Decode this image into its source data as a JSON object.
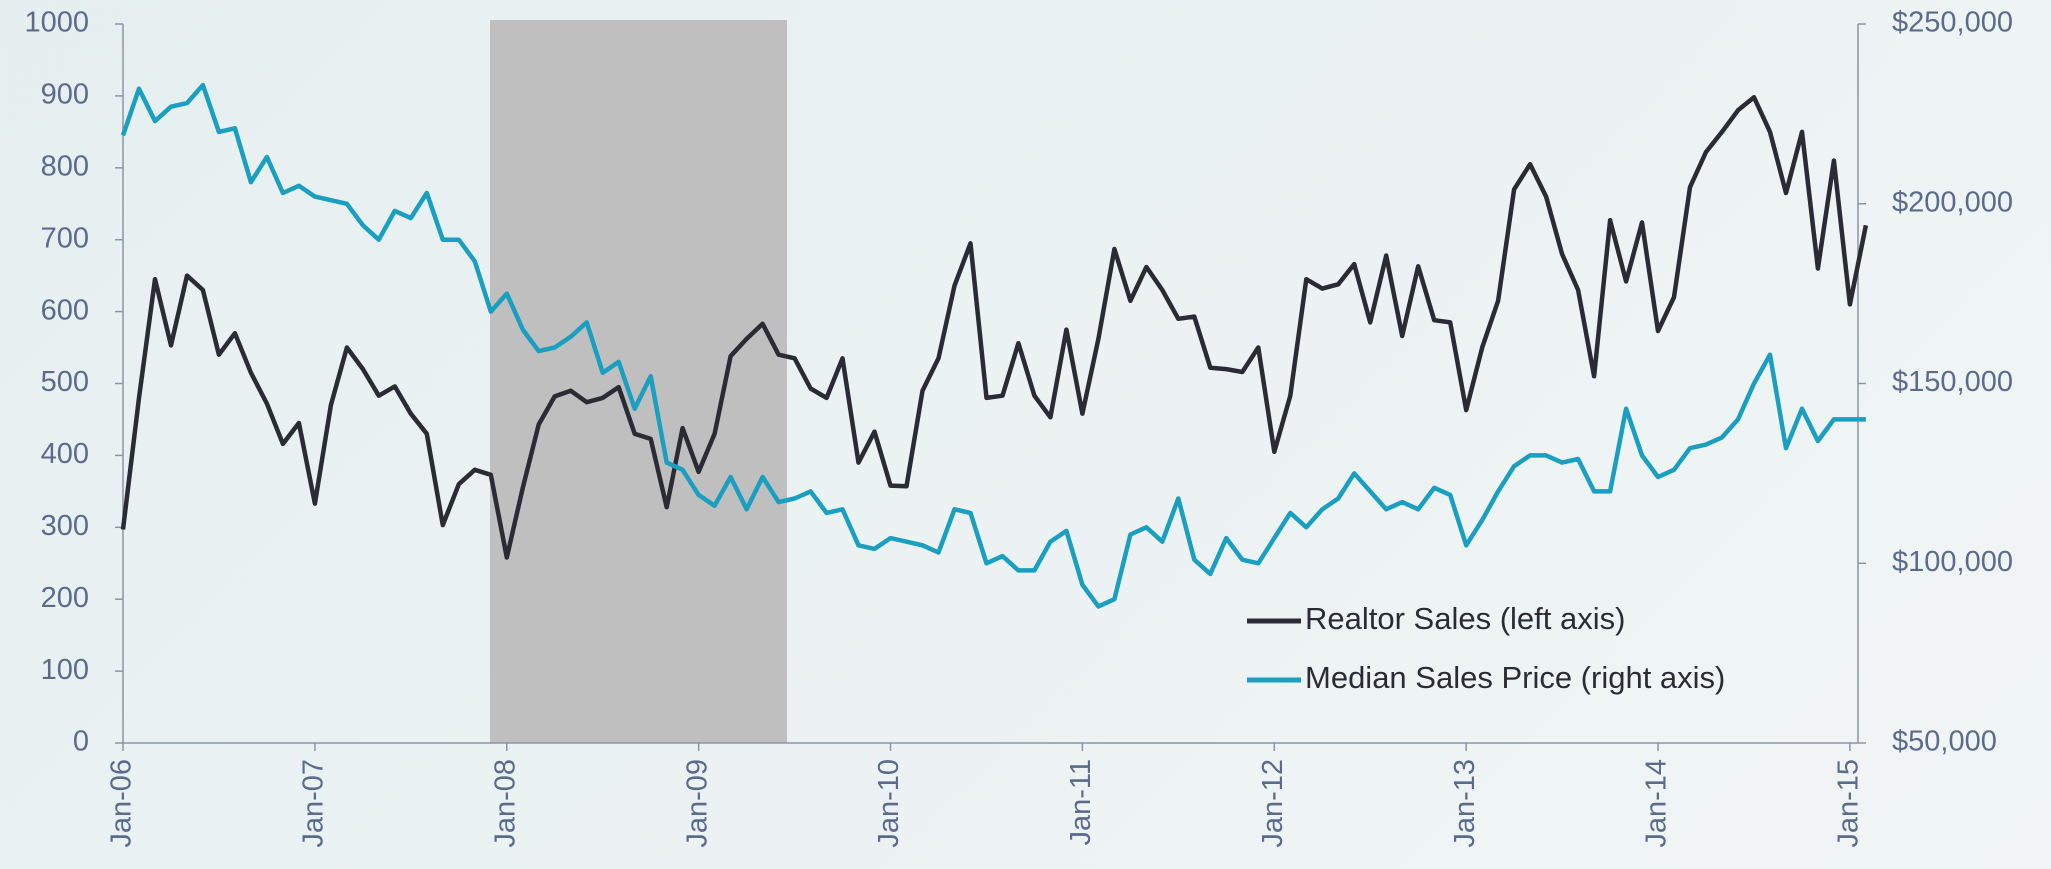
{
  "chart_data": {
    "type": "line",
    "categories": [
      "Jan-06",
      null,
      null,
      null,
      null,
      null,
      null,
      null,
      null,
      null,
      null,
      null,
      "Jan-07",
      null,
      null,
      null,
      null,
      null,
      null,
      null,
      null,
      null,
      null,
      null,
      "Jan-08",
      null,
      null,
      null,
      null,
      null,
      null,
      null,
      null,
      null,
      null,
      null,
      "Jan-09",
      null,
      null,
      null,
      null,
      null,
      null,
      null,
      null,
      null,
      null,
      null,
      "Jan-10",
      null,
      null,
      null,
      null,
      null,
      null,
      null,
      null,
      null,
      null,
      null,
      "Jan-11",
      null,
      null,
      null,
      null,
      null,
      null,
      null,
      null,
      null,
      null,
      null,
      "Jan-12",
      null,
      null,
      null,
      null,
      null,
      null,
      null,
      null,
      null,
      null,
      null,
      "Jan-13",
      null,
      null,
      null,
      null,
      null,
      null,
      null,
      null,
      null,
      null,
      null,
      "Jan-14",
      null,
      null,
      null,
      null,
      null,
      null,
      null,
      null,
      null,
      null,
      null,
      "Jan-15",
      null
    ],
    "series": [
      {
        "name": "Realtor Sales (left axis)",
        "color": "#2b2b36",
        "axis": "y",
        "values": [
          297,
          480,
          645,
          553,
          650,
          630,
          540,
          570,
          515,
          472,
          416,
          445,
          333,
          470,
          550,
          520,
          483,
          496,
          458,
          430,
          303,
          360,
          380,
          373,
          258,
          355,
          443,
          482,
          490,
          474,
          480,
          495,
          430,
          423,
          328,
          438,
          377,
          430,
          538,
          562,
          583,
          540,
          535,
          493,
          480,
          535,
          390,
          433,
          358,
          357,
          490,
          535,
          636,
          695,
          480,
          483,
          556,
          483,
          453,
          575,
          458,
          562,
          687,
          615,
          662,
          630,
          590,
          593,
          522,
          520,
          516,
          550,
          405,
          483,
          645,
          632,
          638,
          666,
          585,
          678,
          566,
          663,
          588,
          585,
          463,
          550,
          615,
          770,
          805,
          760,
          680,
          630,
          510,
          727,
          642,
          724,
          573,
          620,
          773,
          822,
          850,
          880,
          898,
          850,
          765,
          850,
          660,
          810,
          610,
          720
        ]
      },
      {
        "name": "Median Sales Price (right axis)",
        "color": "#1a9fc0",
        "axis": "y2",
        "values": [
          219000,
          232000,
          223000,
          227000,
          228000,
          233000,
          220000,
          221000,
          206000,
          213000,
          203000,
          205000,
          202000,
          201000,
          200000,
          194000,
          190000,
          198000,
          196000,
          203000,
          190000,
          190000,
          184000,
          170000,
          175000,
          165000,
          159000,
          160000,
          163000,
          167000,
          153000,
          156000,
          143000,
          152000,
          128000,
          126000,
          119000,
          116000,
          124000,
          115000,
          124000,
          117000,
          118000,
          120000,
          114000,
          115000,
          105000,
          104000,
          107000,
          106000,
          105000,
          103000,
          115000,
          114000,
          100000,
          102000,
          98000,
          98000,
          106000,
          109000,
          94000,
          88000,
          90000,
          108000,
          110000,
          106000,
          118000,
          101000,
          97000,
          107000,
          101000,
          100000,
          107000,
          114000,
          110000,
          115000,
          118000,
          125000,
          120000,
          115000,
          117000,
          115000,
          121000,
          119000,
          105000,
          112000,
          120000,
          127000,
          130000,
          130000,
          128000,
          129000,
          120000,
          120000,
          143000,
          130000,
          124000,
          126000,
          132000,
          133000,
          135000,
          140000,
          150000,
          158000,
          132000,
          143000,
          134000,
          140000,
          140000,
          140000
        ]
      }
    ],
    "ylim": [
      0,
      1000
    ],
    "yticks": [
      0,
      100,
      200,
      300,
      400,
      500,
      600,
      700,
      800,
      900,
      1000
    ],
    "y2lim": [
      50000,
      250000
    ],
    "y2ticks": [
      {
        "value": 50000,
        "label": "$50,000"
      },
      {
        "value": 100000,
        "label": "$100,000"
      },
      {
        "value": 150000,
        "label": "$150,000"
      },
      {
        "value": 200000,
        "label": "$200,000"
      },
      {
        "value": 250000,
        "label": "$250,000"
      }
    ],
    "grid": false
  }
}
